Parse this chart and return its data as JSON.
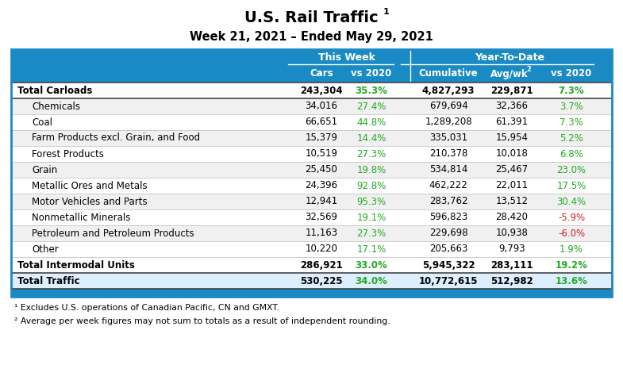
{
  "title": "U.S. Rail Traffic",
  "title_sup": "1",
  "subtitle": "Week 21, 2021 – Ended May 29, 2021",
  "rows": [
    {
      "label": "Total Carloads",
      "indent": false,
      "bold": true,
      "cars": "243,304",
      "vs_week": "35.3%",
      "cumulative": "4,827,293",
      "avgwk": "229,871",
      "vs_ytd": "7.3%",
      "vs_week_green": true,
      "vs_ytd_green": true,
      "bg": "#ffffff"
    },
    {
      "label": "Chemicals",
      "indent": true,
      "bold": false,
      "cars": "34,016",
      "vs_week": "27.4%",
      "cumulative": "679,694",
      "avgwk": "32,366",
      "vs_ytd": "3.7%",
      "vs_week_green": true,
      "vs_ytd_green": true,
      "bg": "#f0f0f0"
    },
    {
      "label": "Coal",
      "indent": true,
      "bold": false,
      "cars": "66,651",
      "vs_week": "44.8%",
      "cumulative": "1,289,208",
      "avgwk": "61,391",
      "vs_ytd": "7.3%",
      "vs_week_green": true,
      "vs_ytd_green": true,
      "bg": "#ffffff"
    },
    {
      "label": "Farm Products excl. Grain, and Food",
      "indent": true,
      "bold": false,
      "cars": "15,379",
      "vs_week": "14.4%",
      "cumulative": "335,031",
      "avgwk": "15,954",
      "vs_ytd": "5.2%",
      "vs_week_green": true,
      "vs_ytd_green": true,
      "bg": "#f0f0f0"
    },
    {
      "label": "Forest Products",
      "indent": true,
      "bold": false,
      "cars": "10,519",
      "vs_week": "27.3%",
      "cumulative": "210,378",
      "avgwk": "10,018",
      "vs_ytd": "6.8%",
      "vs_week_green": true,
      "vs_ytd_green": true,
      "bg": "#ffffff"
    },
    {
      "label": "Grain",
      "indent": true,
      "bold": false,
      "cars": "25,450",
      "vs_week": "19.8%",
      "cumulative": "534,814",
      "avgwk": "25,467",
      "vs_ytd": "23.0%",
      "vs_week_green": true,
      "vs_ytd_green": true,
      "bg": "#f0f0f0"
    },
    {
      "label": "Metallic Ores and Metals",
      "indent": true,
      "bold": false,
      "cars": "24,396",
      "vs_week": "92.8%",
      "cumulative": "462,222",
      "avgwk": "22,011",
      "vs_ytd": "17.5%",
      "vs_week_green": true,
      "vs_ytd_green": true,
      "bg": "#ffffff"
    },
    {
      "label": "Motor Vehicles and Parts",
      "indent": true,
      "bold": false,
      "cars": "12,941",
      "vs_week": "95.3%",
      "cumulative": "283,762",
      "avgwk": "13,512",
      "vs_ytd": "30.4%",
      "vs_week_green": true,
      "vs_ytd_green": true,
      "bg": "#f0f0f0"
    },
    {
      "label": "Nonmetallic Minerals",
      "indent": true,
      "bold": false,
      "cars": "32,569",
      "vs_week": "19.1%",
      "cumulative": "596,823",
      "avgwk": "28,420",
      "vs_ytd": "-5.9%",
      "vs_week_green": true,
      "vs_ytd_green": false,
      "bg": "#ffffff"
    },
    {
      "label": "Petroleum and Petroleum Products",
      "indent": true,
      "bold": false,
      "cars": "11,163",
      "vs_week": "27.3%",
      "cumulative": "229,698",
      "avgwk": "10,938",
      "vs_ytd": "-6.0%",
      "vs_week_green": true,
      "vs_ytd_green": false,
      "bg": "#f0f0f0"
    },
    {
      "label": "Other",
      "indent": true,
      "bold": false,
      "cars": "10,220",
      "vs_week": "17.1%",
      "cumulative": "205,663",
      "avgwk": "9,793",
      "vs_ytd": "1.9%",
      "vs_week_green": true,
      "vs_ytd_green": true,
      "bg": "#ffffff"
    },
    {
      "label": "Total Intermodal Units",
      "indent": false,
      "bold": true,
      "cars": "286,921",
      "vs_week": "33.0%",
      "cumulative": "5,945,322",
      "avgwk": "283,111",
      "vs_ytd": "19.2%",
      "vs_week_green": true,
      "vs_ytd_green": true,
      "bg": "#ffffff"
    },
    {
      "label": "Total Traffic",
      "indent": false,
      "bold": true,
      "cars": "530,225",
      "vs_week": "34.0%",
      "cumulative": "10,772,615",
      "avgwk": "512,982",
      "vs_ytd": "13.6%",
      "vs_week_green": true,
      "vs_ytd_green": true,
      "bg": "#ddeeff"
    }
  ],
  "footnotes": [
    "¹ Excludes U.S. operations of Canadian Pacific, CN and GMXT.",
    "² Average per week figures may not sum to totals as a result of independent rounding."
  ],
  "header_blue": "#1a8ac4",
  "green": "#22aa22",
  "red": "#cc2222",
  "fig_w": 7.85,
  "fig_h": 4.84,
  "dpi": 100
}
